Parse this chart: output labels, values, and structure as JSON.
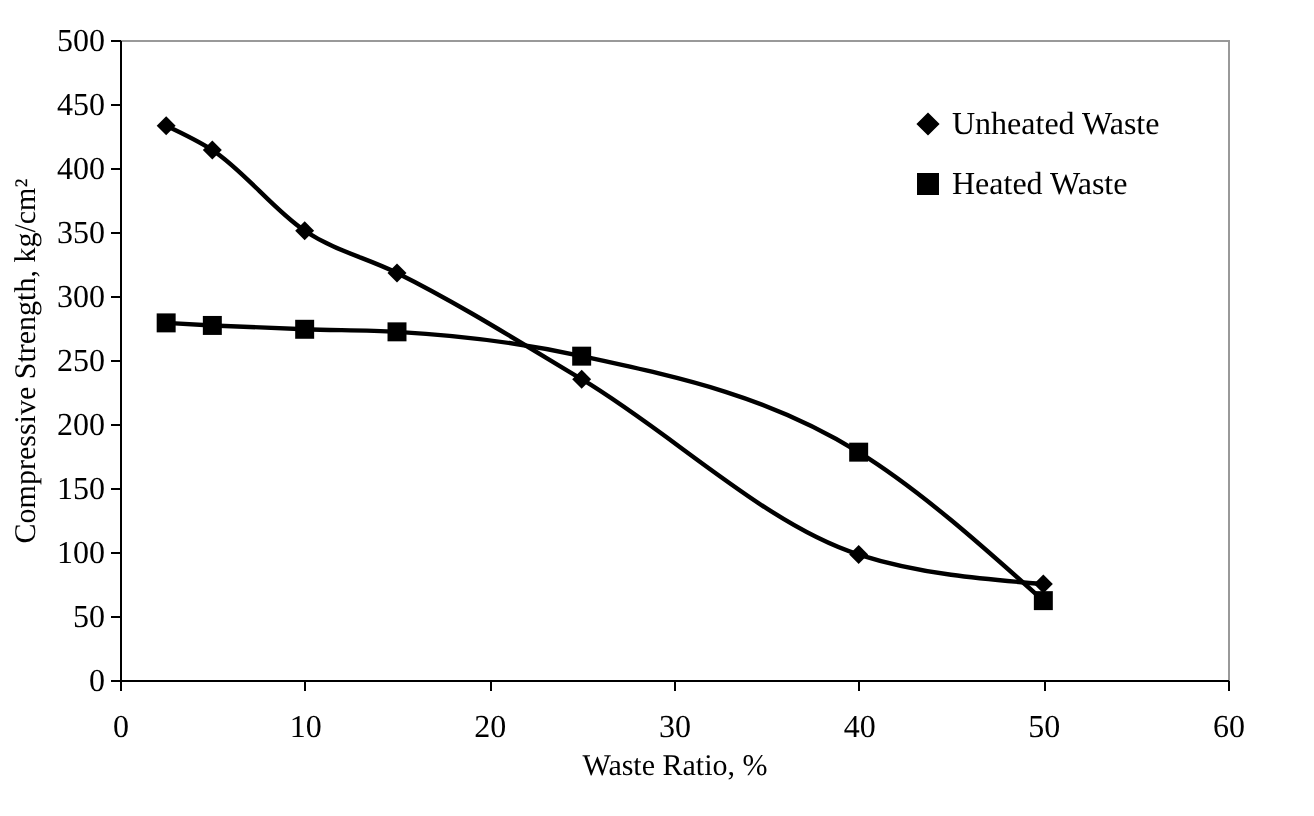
{
  "chart_data": {
    "type": "line",
    "xlabel": "Waste Ratio, %",
    "ylabel": "Compressive Strength, kg/cm²",
    "xlim": [
      0,
      60
    ],
    "xticks": [
      0,
      10,
      20,
      30,
      40,
      50,
      60
    ],
    "ylim": [
      0,
      500
    ],
    "yticks": [
      0,
      50,
      100,
      150,
      200,
      250,
      300,
      350,
      400,
      450,
      500
    ],
    "grid": false,
    "legend": "top right",
    "series": [
      {
        "name": "Unheated Waste",
        "color": "#000000",
        "marker": "diamond",
        "x": [
          2.5,
          5,
          10,
          15,
          25,
          40,
          50
        ],
        "values": [
          433,
          414,
          351,
          318,
          235,
          98,
          75
        ]
      },
      {
        "name": "Heated Waste",
        "color": "#000000",
        "marker": "square",
        "x": [
          2.5,
          5,
          10,
          15,
          25,
          40,
          50
        ],
        "values": [
          279,
          277,
          274,
          272,
          253,
          178,
          62
        ]
      }
    ]
  }
}
